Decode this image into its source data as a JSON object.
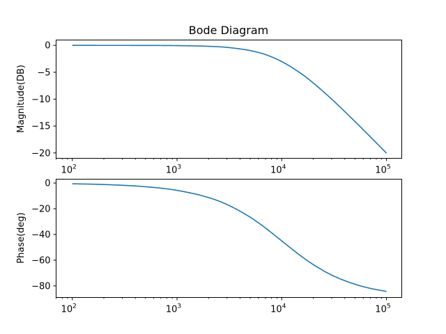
{
  "chart_data": [
    {
      "type": "line",
      "title": "Bode Diagram",
      "xlabel": "",
      "ylabel": "Magnitude(DB)",
      "x_scale": "log",
      "xlim": [
        70,
        140000
      ],
      "ylim": [
        -21,
        1
      ],
      "x_ticks": [
        {
          "value": 100,
          "base": "10",
          "exp": "2"
        },
        {
          "value": 1000,
          "base": "10",
          "exp": "3"
        },
        {
          "value": 10000,
          "base": "10",
          "exp": "4"
        },
        {
          "value": 100000,
          "base": "10",
          "exp": "5"
        }
      ],
      "y_ticks": [
        {
          "value": 0,
          "label": "0"
        },
        {
          "value": -5,
          "label": "−5"
        },
        {
          "value": -10,
          "label": "−10"
        },
        {
          "value": -15,
          "label": "−15"
        },
        {
          "value": -20,
          "label": "−20"
        }
      ],
      "grid": false,
      "series": [
        {
          "color": "#1f77b4",
          "x": [
            100,
            200,
            500,
            1000,
            2000,
            3000,
            5000,
            7000,
            10000,
            15000,
            20000,
            30000,
            50000,
            70000,
            100000
          ],
          "y": [
            -0.0004,
            -0.0017,
            -0.011,
            -0.043,
            -0.17,
            -0.37,
            -0.97,
            -1.71,
            -3.01,
            -5.12,
            -6.99,
            -10.0,
            -14.15,
            -16.98,
            -20.04
          ]
        }
      ]
    },
    {
      "type": "line",
      "title": "",
      "xlabel": "",
      "ylabel": "Phase(deg)",
      "x_scale": "log",
      "xlim": [
        70,
        140000
      ],
      "ylim": [
        -89,
        3
      ],
      "x_ticks": [
        {
          "value": 100,
          "base": "10",
          "exp": "2"
        },
        {
          "value": 1000,
          "base": "10",
          "exp": "3"
        },
        {
          "value": 10000,
          "base": "10",
          "exp": "4"
        },
        {
          "value": 100000,
          "base": "10",
          "exp": "5"
        }
      ],
      "y_ticks": [
        {
          "value": 0,
          "label": "0"
        },
        {
          "value": -20,
          "label": "−20"
        },
        {
          "value": -40,
          "label": "−40"
        },
        {
          "value": -60,
          "label": "−60"
        },
        {
          "value": -80,
          "label": "−80"
        }
      ],
      "grid": false,
      "series": [
        {
          "color": "#1f77b4",
          "x": [
            100,
            200,
            500,
            1000,
            2000,
            3000,
            5000,
            7000,
            10000,
            15000,
            20000,
            30000,
            50000,
            70000,
            100000
          ],
          "y": [
            -0.57,
            -1.15,
            -2.86,
            -5.71,
            -11.3,
            -16.7,
            -26.6,
            -35.0,
            -45.0,
            -56.3,
            -63.4,
            -71.6,
            -78.7,
            -81.9,
            -84.3
          ]
        }
      ]
    }
  ]
}
